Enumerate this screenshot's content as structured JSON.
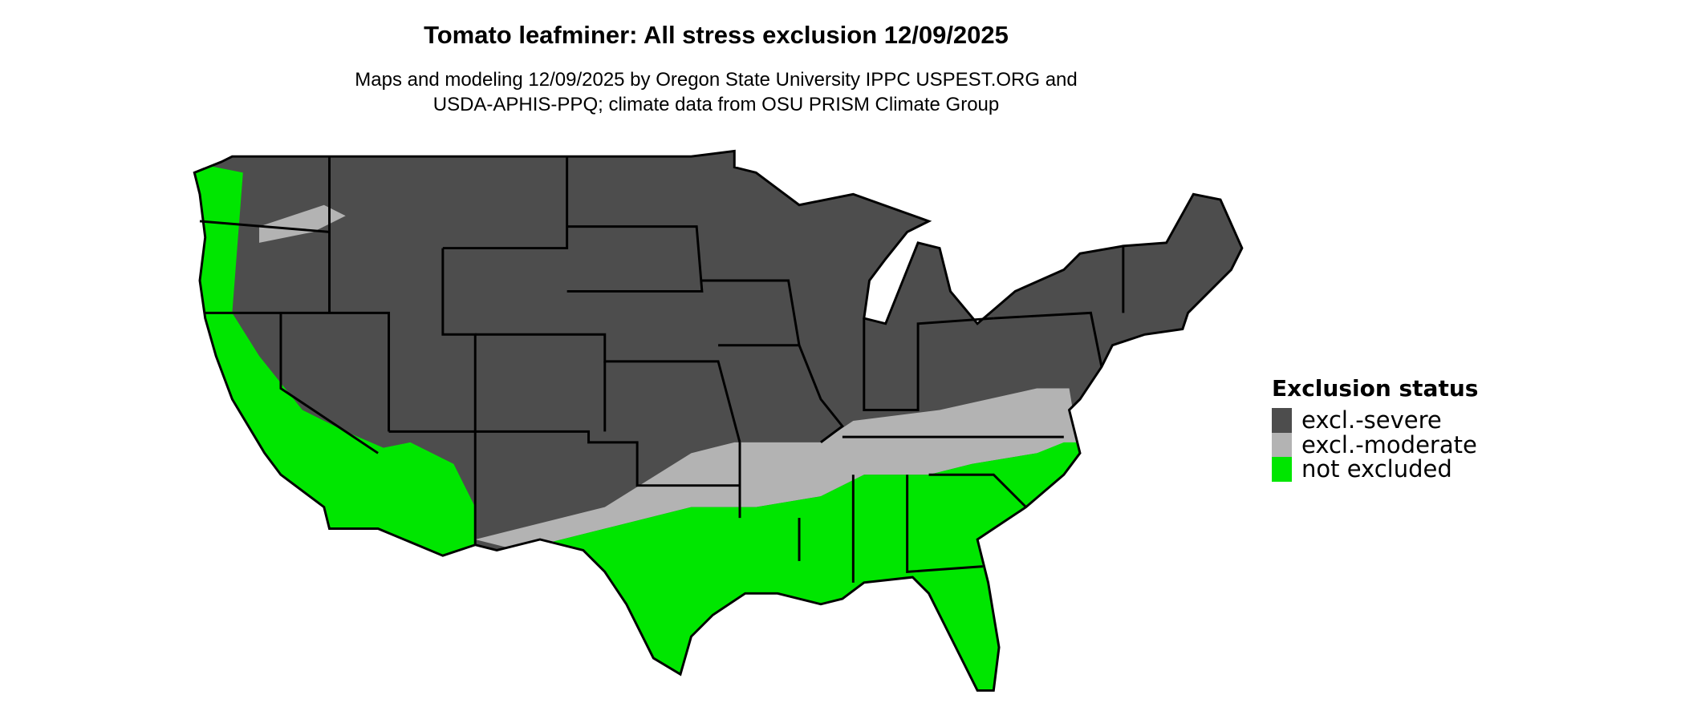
{
  "title": "Tomato leafminer: All stress exclusion 12/09/2025",
  "subtitle_line1": "Maps and modeling 12/09/2025 by Oregon State University IPPC USPEST.ORG and",
  "subtitle_line2": "USDA-APHIS-PPQ; climate data from OSU PRISM Climate Group",
  "map": {
    "region": "conterminous United States",
    "layer": "exclusion status by area",
    "state_borders": true
  },
  "legend": {
    "title": "Exclusion status",
    "items": [
      {
        "label": "excl.-severe",
        "color": "#4d4d4d"
      },
      {
        "label": "excl.-moderate",
        "color": "#b3b3b3"
      },
      {
        "label": "not excluded",
        "color": "#00e600"
      }
    ]
  }
}
